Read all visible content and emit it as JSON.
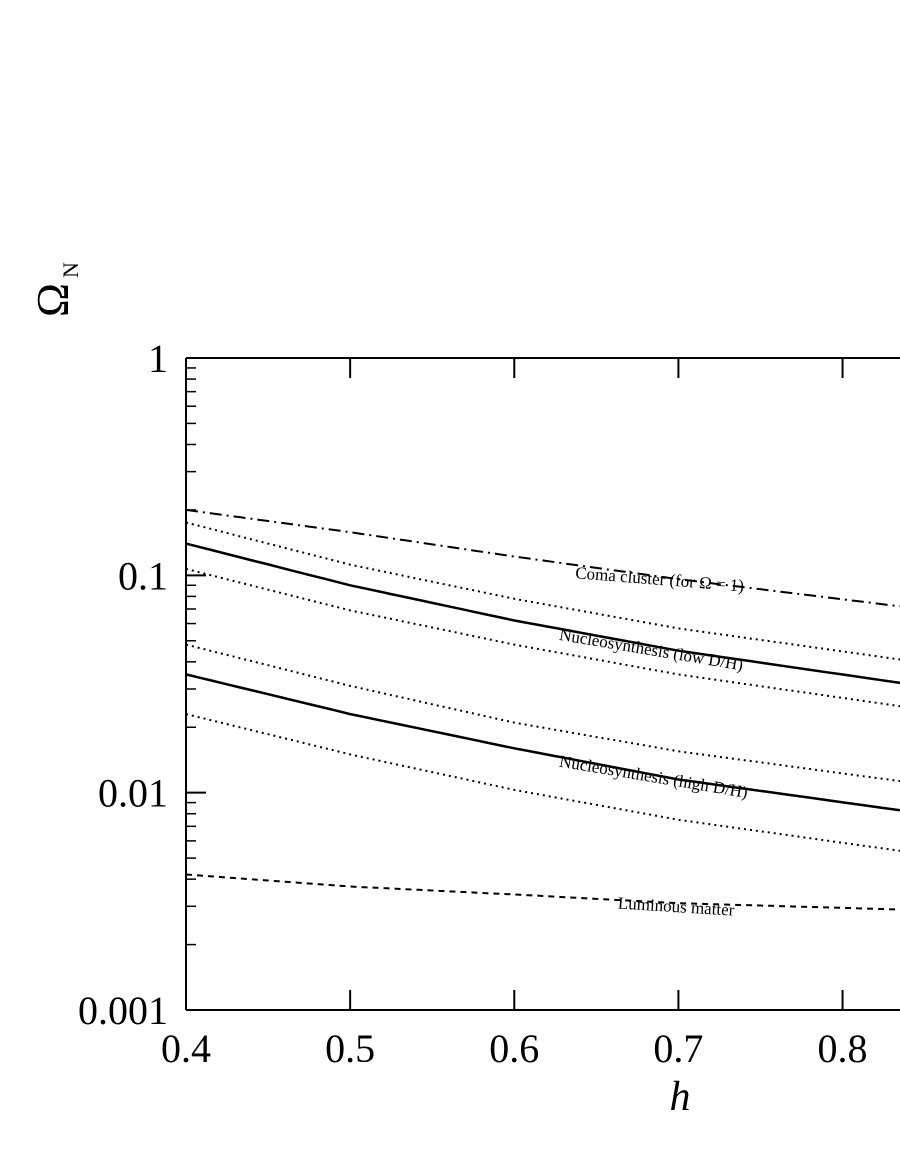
{
  "chart_data": {
    "type": "line",
    "xlabel": "h",
    "ylabel": "Ω",
    "ylabel_subscript": "N",
    "xlim": [
      0.4,
      0.835
    ],
    "ylim": [
      0.001,
      1
    ],
    "y_scale": "log",
    "grid": false,
    "x_ticks": [
      {
        "value": 0.4,
        "label": "0.4"
      },
      {
        "value": 0.5,
        "label": "0.5"
      },
      {
        "value": 0.6,
        "label": "0.6"
      },
      {
        "value": 0.7,
        "label": "0.7"
      },
      {
        "value": 0.8,
        "label": "0.8"
      }
    ],
    "y_ticks": [
      {
        "value": 1,
        "label": "1"
      },
      {
        "value": 0.1,
        "label": "0.1"
      },
      {
        "value": 0.01,
        "label": "0.01"
      },
      {
        "value": 0.001,
        "label": "0.001"
      }
    ],
    "series": [
      {
        "style": "dashdot",
        "x": [
          0.4,
          0.5,
          0.6,
          0.7,
          0.835
        ],
        "y": [
          0.2,
          0.158,
          0.122,
          0.096,
          0.072
        ]
      },
      {
        "style": "dotted",
        "x": [
          0.4,
          0.5,
          0.6,
          0.7,
          0.835
        ],
        "y": [
          0.175,
          0.112,
          0.078,
          0.057,
          0.041
        ]
      },
      {
        "style": "solid",
        "x": [
          0.4,
          0.5,
          0.6,
          0.7,
          0.835
        ],
        "y": [
          0.14,
          0.09,
          0.062,
          0.045,
          0.032
        ]
      },
      {
        "style": "dotted",
        "x": [
          0.4,
          0.5,
          0.6,
          0.7,
          0.835
        ],
        "y": [
          0.107,
          0.069,
          0.048,
          0.035,
          0.025
        ]
      },
      {
        "style": "dotted",
        "x": [
          0.4,
          0.5,
          0.6,
          0.7,
          0.835
        ],
        "y": [
          0.048,
          0.031,
          0.021,
          0.0155,
          0.0113
        ]
      },
      {
        "style": "solid",
        "x": [
          0.4,
          0.5,
          0.6,
          0.7,
          0.835
        ],
        "y": [
          0.035,
          0.023,
          0.016,
          0.0115,
          0.0083
        ]
      },
      {
        "style": "dotted",
        "x": [
          0.4,
          0.5,
          0.6,
          0.7,
          0.835
        ],
        "y": [
          0.023,
          0.015,
          0.0103,
          0.0075,
          0.0054
        ]
      },
      {
        "style": "dashed",
        "x": [
          0.4,
          0.5,
          0.6,
          0.7,
          0.835
        ],
        "y": [
          0.0042,
          0.0037,
          0.0034,
          0.0031,
          0.0029
        ]
      }
    ],
    "annotations": [
      {
        "text": "Coma cluster (for Ω = 1)",
        "x": 0.637,
        "y": 0.097,
        "angle": 4.5
      },
      {
        "text": "Nucleosynthesis (low D/H)",
        "x": 0.627,
        "y": 0.0505,
        "angle": 9.5
      },
      {
        "text": "Nucleosynthesis (high D/H)",
        "x": 0.627,
        "y": 0.0132,
        "angle": 9.5
      },
      {
        "text": "Luminous matter",
        "x": 0.663,
        "y": 0.00293,
        "angle": 3.5
      }
    ]
  }
}
